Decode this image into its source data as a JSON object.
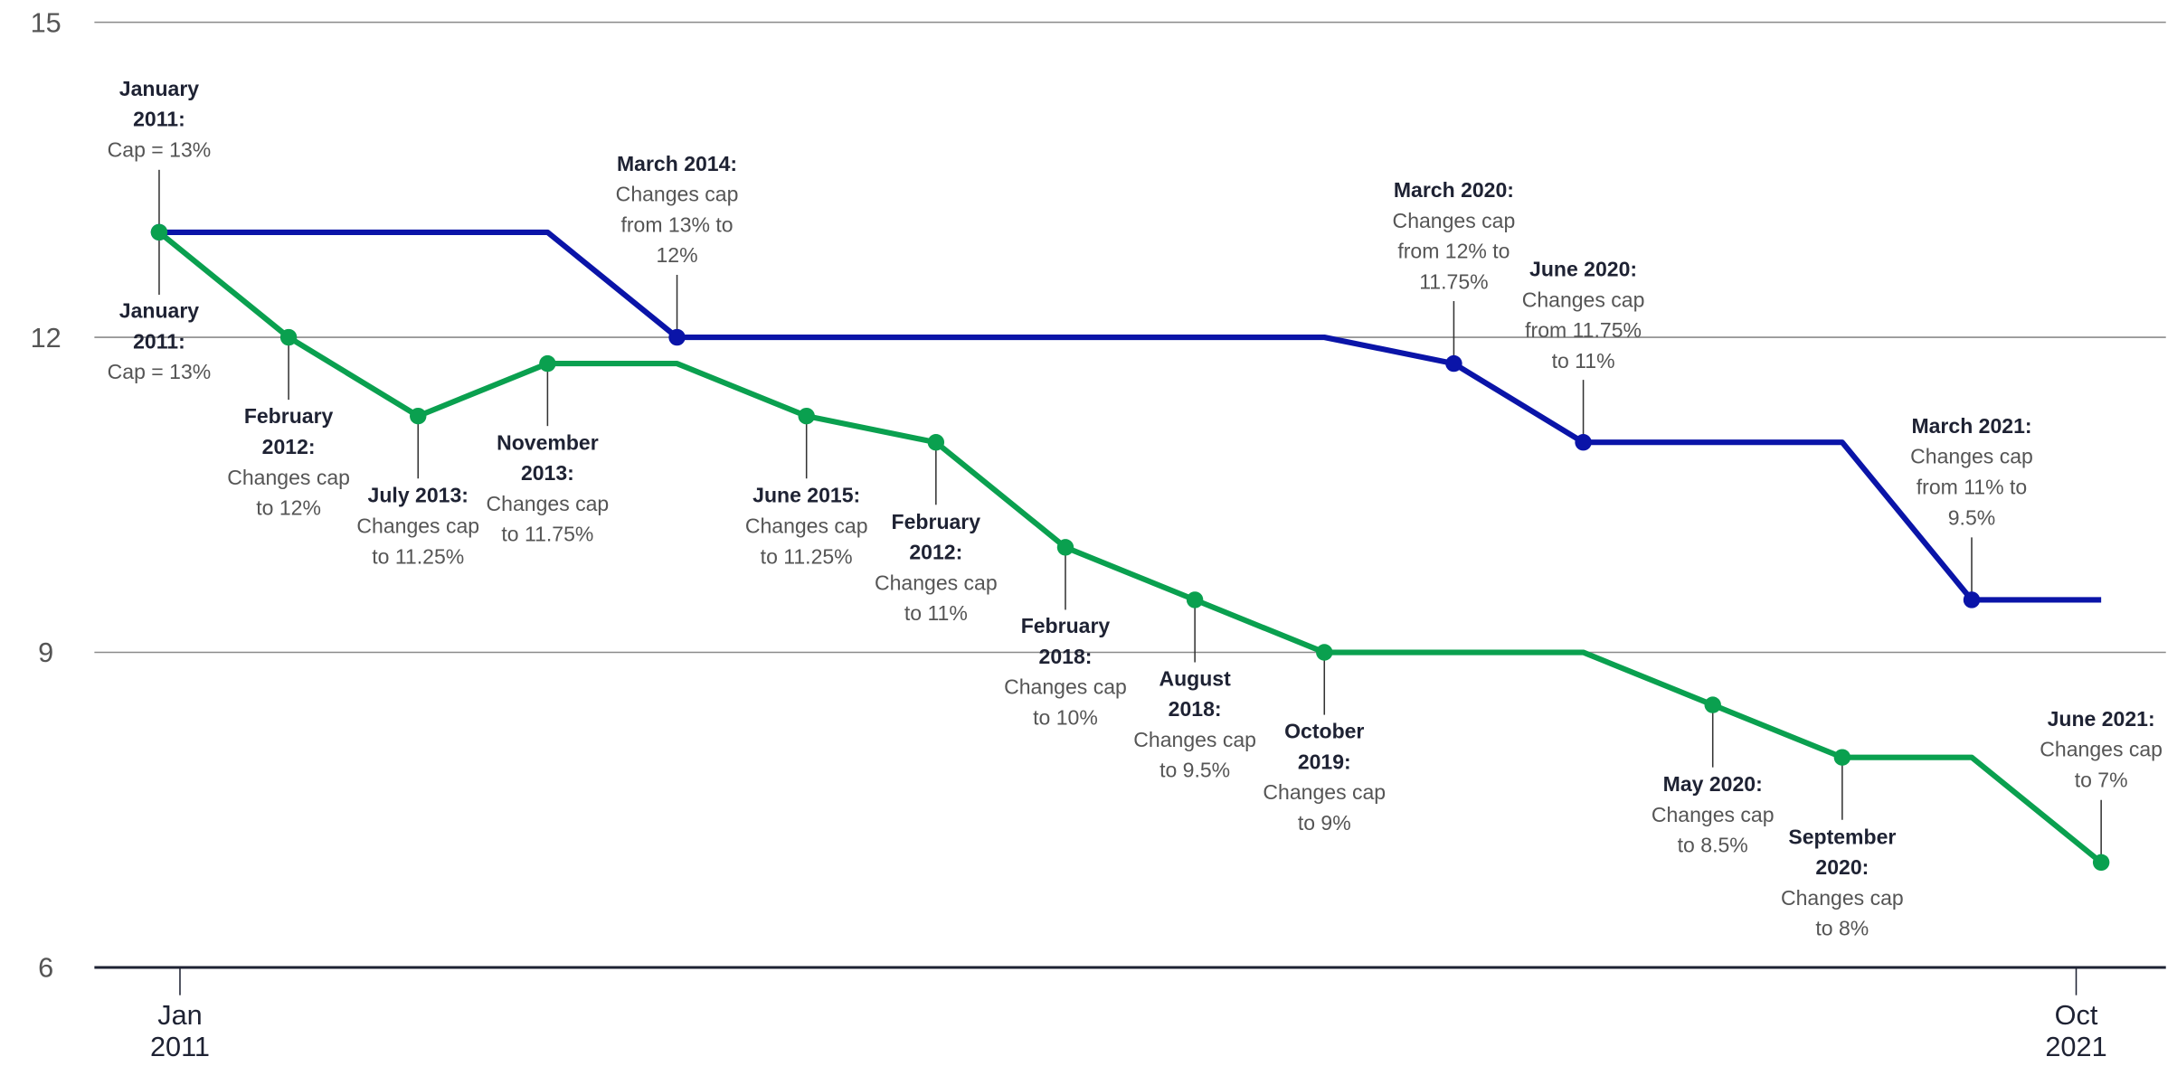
{
  "chart_data": {
    "type": "line",
    "categories": [
      null,
      null,
      null,
      null,
      null,
      null,
      null,
      null,
      null,
      null,
      null,
      null,
      null,
      null,
      null,
      null
    ],
    "x_labels": [
      "Jan 2011",
      "Oct 2021"
    ],
    "ylim": [
      6,
      15
    ],
    "yticks": [
      6,
      9,
      12,
      15
    ],
    "grid": true,
    "series": [
      {
        "color": "#0a14a8",
        "values": [
          13,
          13,
          13,
          13,
          12,
          12,
          12,
          12,
          12,
          12,
          11.75,
          11,
          11,
          11,
          9.5,
          9.5
        ],
        "annotations": [
          {
            "title": "January 2011:",
            "text": "Cap = 13%",
            "placement": "above"
          },
          null,
          null,
          null,
          {
            "title": "March 2014:",
            "text": "Changes cap from 13% to 12%",
            "placement": "above"
          },
          null,
          null,
          null,
          null,
          null,
          {
            "title": "March 2020:",
            "text": "Changes cap from 12% to 11.75%",
            "placement": "above"
          },
          {
            "title": "June 2020:",
            "text": "Changes cap from 11.75% to 11%",
            "placement": "above"
          },
          null,
          null,
          {
            "title": "March 2021:",
            "text": "Changes cap from 11% to 9.5%",
            "placement": "above"
          },
          null
        ]
      },
      {
        "color": "#0aa04f",
        "values": [
          13,
          12,
          11.25,
          11.75,
          11.75,
          11.25,
          11,
          10,
          9.5,
          9,
          9,
          9,
          8.5,
          8,
          8,
          7
        ],
        "annotations": [
          {
            "title": "January 2011:",
            "text": "Cap = 13%",
            "placement": "below"
          },
          {
            "title": "February 2012:",
            "text": "Changes cap to 12%",
            "placement": "below"
          },
          {
            "title": "July 2013:",
            "text": "Changes cap to 11.25%",
            "placement": "below"
          },
          {
            "title": "November 2013:",
            "text": "Changes cap to 11.75%",
            "placement": "below"
          },
          null,
          {
            "title": "June 2015:",
            "text": "Changes cap to 11.25%",
            "placement": "below"
          },
          {
            "title": "February 2012:",
            "text": "Changes cap to 11%",
            "placement": "below"
          },
          {
            "title": "February 2018:",
            "text": "Changes cap to 10%",
            "placement": "below"
          },
          {
            "title": "August 2018:",
            "text": "Changes cap to 9.5%",
            "placement": "below"
          },
          {
            "title": "October 2019:",
            "text": "Changes cap to 9%",
            "placement": "below"
          },
          null,
          null,
          {
            "title": "May 2020:",
            "text": "Changes cap to 8.5%",
            "placement": "below"
          },
          {
            "title": "September 2020:",
            "text": "Changes cap to 8%",
            "placement": "below"
          },
          null,
          {
            "title": "June 2021:",
            "text": "Changes cap to 7%",
            "placement": "above"
          }
        ]
      }
    ]
  }
}
